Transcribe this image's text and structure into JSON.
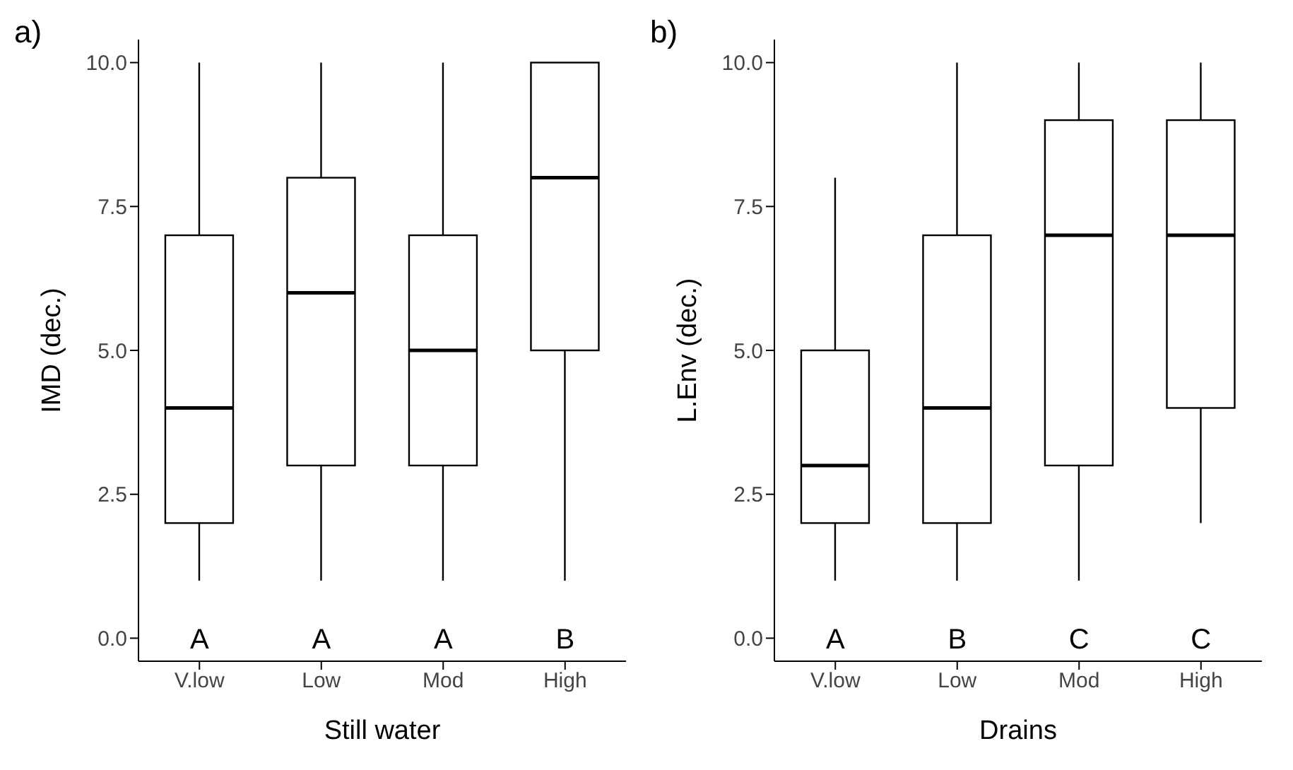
{
  "chart_data": [
    {
      "type": "box",
      "title": "a)",
      "xlabel": "Still water",
      "ylabel": "IMD (dec.)",
      "categories": [
        "V.low",
        "Low",
        "Mod",
        "High"
      ],
      "boxes": [
        {
          "low": 1,
          "q1": 2,
          "median": 4,
          "q3": 7,
          "high": 10
        },
        {
          "low": 1,
          "q1": 3,
          "median": 6,
          "q3": 8,
          "high": 10
        },
        {
          "low": 1,
          "q1": 3,
          "median": 5,
          "q3": 7,
          "high": 10
        },
        {
          "low": 1,
          "q1": 5,
          "median": 8,
          "q3": 10,
          "high": 10
        }
      ],
      "ylim": [
        -0.4,
        10.4
      ],
      "yticks": [
        {
          "value": 0,
          "label": "0.0"
        },
        {
          "value": 2.5,
          "label": "2.5"
        },
        {
          "value": 5,
          "label": "5.0"
        },
        {
          "value": 7.5,
          "label": "7.5"
        },
        {
          "value": 10,
          "label": "10.0"
        }
      ],
      "annotations": [
        "A",
        "A",
        "A",
        "B"
      ],
      "grid": false,
      "legend": false
    },
    {
      "type": "box",
      "title": "b)",
      "xlabel": "Drains",
      "ylabel": "L.Env (dec.)",
      "categories": [
        "V.low",
        "Low",
        "Mod",
        "High"
      ],
      "boxes": [
        {
          "low": 1,
          "q1": 2,
          "median": 3,
          "q3": 5,
          "high": 8
        },
        {
          "low": 1,
          "q1": 2,
          "median": 4,
          "q3": 7,
          "high": 10
        },
        {
          "low": 1,
          "q1": 3,
          "median": 7,
          "q3": 9,
          "high": 10
        },
        {
          "low": 2,
          "q1": 4,
          "median": 7,
          "q3": 9,
          "high": 10
        }
      ],
      "ylim": [
        -0.4,
        10.4
      ],
      "yticks": [
        {
          "value": 0,
          "label": "0.0"
        },
        {
          "value": 2.5,
          "label": "2.5"
        },
        {
          "value": 5,
          "label": "5.0"
        },
        {
          "value": 7.5,
          "label": "7.5"
        },
        {
          "value": 10,
          "label": "10.0"
        }
      ],
      "annotations": [
        "A",
        "B",
        "C",
        "C"
      ],
      "grid": false,
      "legend": false
    }
  ]
}
